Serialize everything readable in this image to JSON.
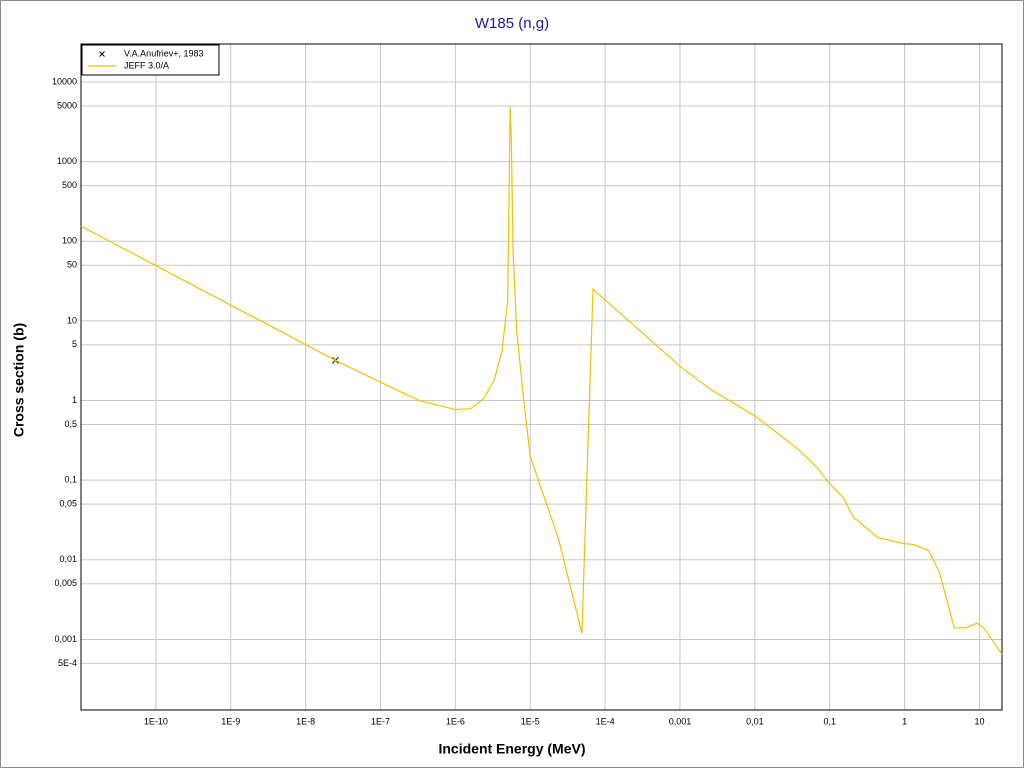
{
  "chart_data": {
    "type": "line",
    "title": "W185 (n,g)",
    "xlabel": "Incident Energy (MeV)",
    "ylabel": "Cross section (b)",
    "xscale": "log",
    "yscale": "log",
    "grid": true,
    "legend": "upper left",
    "xlim": [
      1e-11,
      20
    ],
    "ylim": [
      0.00013,
      30000
    ],
    "xticks": [
      {
        "value": 1e-10,
        "label": "1E-10"
      },
      {
        "value": 1e-09,
        "label": "1E-9"
      },
      {
        "value": 1e-08,
        "label": "1E-8"
      },
      {
        "value": 1e-07,
        "label": "1E-7"
      },
      {
        "value": 1e-06,
        "label": "1E-6"
      },
      {
        "value": 1e-05,
        "label": "1E-5"
      },
      {
        "value": 0.0001,
        "label": "1E-4"
      },
      {
        "value": 0.001,
        "label": "0,001"
      },
      {
        "value": 0.01,
        "label": "0,01"
      },
      {
        "value": 0.1,
        "label": "0,1"
      },
      1,
      10
    ],
    "yticks": [
      10000,
      5000,
      1000,
      500,
      100,
      50,
      10,
      5,
      1,
      {
        "value": 0.5,
        "label": "0,5"
      },
      {
        "value": 0.1,
        "label": "0,1"
      },
      {
        "value": 0.05,
        "label": "0,05"
      },
      {
        "value": 0.01,
        "label": "0,01"
      },
      {
        "value": 0.005,
        "label": "0,005"
      },
      {
        "value": 0.001,
        "label": "0,001"
      },
      {
        "value": 0.0005,
        "label": "5E-4"
      }
    ],
    "series": [
      {
        "name": "V.A.Anufriev+, 1983",
        "type": "scatter",
        "color": "#000000",
        "x": [
          2.5e-08
        ],
        "values": [
          3.2
        ]
      },
      {
        "name": "JEFF 3.0/A",
        "type": "line",
        "color": "#f5c000",
        "x": [
          1e-11,
          2.5e-08,
          1e-07,
          3.3e-07,
          1e-06,
          1.6e-06,
          2.4e-06,
          3.3e-06,
          4.2e-06,
          5e-06,
          5.3e-06,
          5.4e-06,
          5.6e-06,
          5.9e-06,
          6.6e-06,
          8.2e-06,
          1e-05,
          2.4e-05,
          4.9e-05,
          6.9e-05,
          0.001,
          0.0025,
          0.0098,
          0.018,
          0.039,
          0.07,
          0.095,
          0.15,
          0.21,
          0.44,
          0.99,
          1.35,
          2.1,
          2.9,
          4.6,
          6.6,
          9.2,
          11.4,
          20
        ],
        "values": [
          155,
          3.2,
          1.7,
          1.0,
          0.77,
          0.79,
          1.06,
          1.8,
          4.2,
          18,
          1300,
          4900,
          1800,
          75,
          7.5,
          1.0,
          0.2,
          0.018,
          0.0012,
          25,
          2.7,
          1.4,
          0.65,
          0.42,
          0.24,
          0.14,
          0.095,
          0.061,
          0.034,
          0.019,
          0.016,
          0.0155,
          0.013,
          0.0071,
          0.0014,
          0.0014,
          0.0016,
          0.0014,
          0.00065
        ]
      }
    ]
  }
}
